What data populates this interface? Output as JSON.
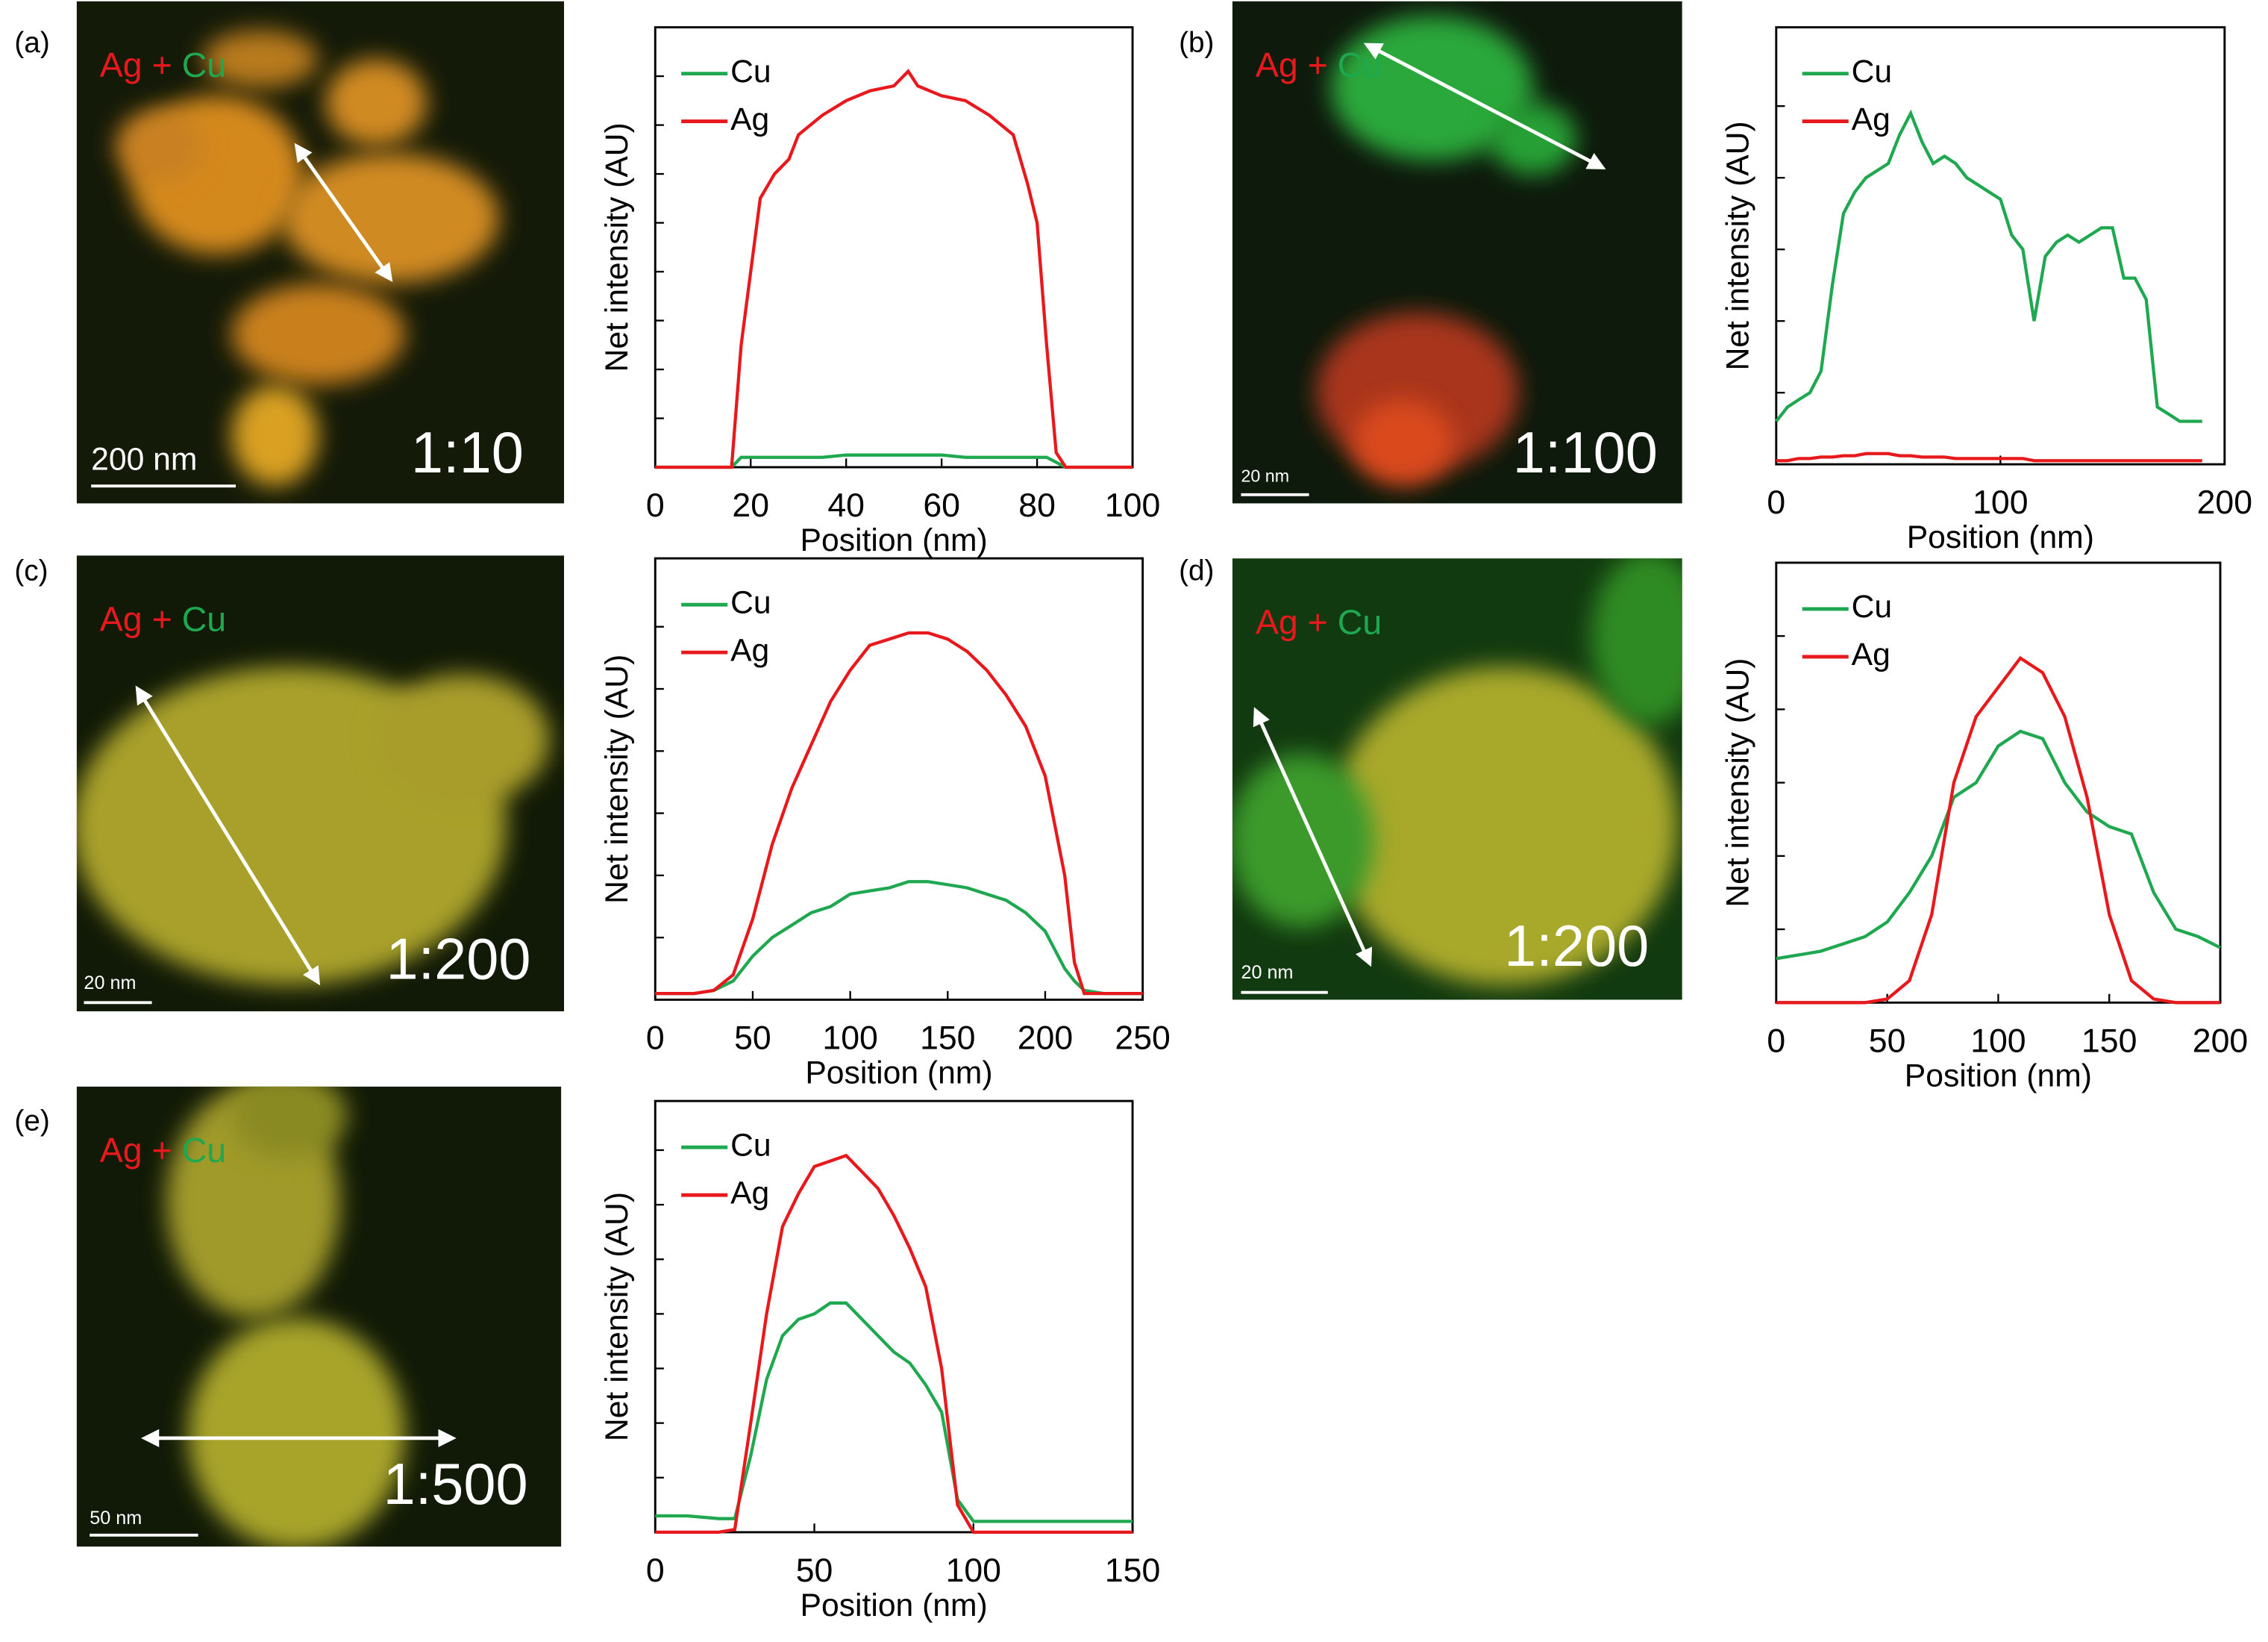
{
  "chart_data": [
    {
      "type": "line",
      "panel_label": "(a)",
      "map_labels": [
        {
          "text": "Ag",
          "color": "#e8191c"
        },
        {
          "text": "+",
          "color": "#e8191c"
        },
        {
          "text": "Cu",
          "color": "#1fa84f"
        }
      ],
      "scale_bar": "200 nm",
      "ratio": "1:10",
      "ylabel": "Net intensity (AU)",
      "xlabel": "Position (nm)",
      "legend": "upper left",
      "x": [
        0,
        10,
        16,
        18,
        20,
        22,
        25,
        28,
        30,
        35,
        40,
        45,
        50,
        53,
        55,
        60,
        65,
        70,
        75,
        78,
        80,
        82,
        84,
        86,
        90,
        100
      ],
      "series": [
        {
          "name": "Cu",
          "color": "#1fa84f",
          "values": [
            0,
            0,
            0,
            0.2,
            0.2,
            0.2,
            0.2,
            0.2,
            0.2,
            0.2,
            0.25,
            0.25,
            0.25,
            0.25,
            0.25,
            0.25,
            0.2,
            0.2,
            0.2,
            0.2,
            0.2,
            0.2,
            0.1,
            0,
            0,
            0
          ]
        },
        {
          "name": "Ag",
          "color": "#e8191c",
          "values": [
            0,
            0,
            0,
            2.5,
            4.0,
            5.5,
            6.0,
            6.3,
            6.8,
            7.2,
            7.5,
            7.7,
            7.8,
            8.1,
            7.8,
            7.6,
            7.5,
            7.2,
            6.8,
            5.8,
            5.0,
            2.5,
            0.3,
            0,
            0,
            0
          ]
        }
      ],
      "xlim": [
        0,
        100
      ],
      "xticks": [
        0,
        20,
        40,
        60,
        80,
        100
      ],
      "ylim": [
        0,
        9
      ],
      "yticks": [
        1,
        2,
        3,
        4,
        5,
        6,
        7,
        8
      ]
    },
    {
      "type": "line",
      "panel_label": "(b)",
      "map_labels": [
        {
          "text": "Ag",
          "color": "#e8191c"
        },
        {
          "text": "+",
          "color": "#e8191c"
        },
        {
          "text": "Cu",
          "color": "#1fa84f"
        }
      ],
      "scale_bar": "20 nm",
      "ratio": "1:100",
      "ylabel": "Net intensity (AU)",
      "xlabel": "Position (nm)",
      "legend": "upper left",
      "x": [
        0,
        5,
        10,
        15,
        20,
        25,
        30,
        35,
        40,
        45,
        50,
        55,
        60,
        65,
        70,
        75,
        80,
        85,
        90,
        95,
        100,
        105,
        110,
        115,
        120,
        125,
        130,
        135,
        140,
        145,
        150,
        155,
        160,
        165,
        170,
        175,
        180,
        185,
        190
      ],
      "series": [
        {
          "name": "Cu",
          "color": "#1fa84f",
          "values": [
            0.6,
            0.8,
            0.9,
            1.0,
            1.3,
            2.5,
            3.5,
            3.8,
            4.0,
            4.1,
            4.2,
            4.6,
            4.9,
            4.5,
            4.2,
            4.3,
            4.2,
            4.0,
            3.9,
            3.8,
            3.7,
            3.2,
            3.0,
            2.0,
            2.9,
            3.1,
            3.2,
            3.1,
            3.2,
            3.3,
            3.3,
            2.6,
            2.6,
            2.3,
            0.8,
            0.7,
            0.6,
            0.6,
            0.6
          ]
        },
        {
          "name": "Ag",
          "color": "#e8191c",
          "values": [
            0.05,
            0.05,
            0.08,
            0.08,
            0.1,
            0.1,
            0.12,
            0.12,
            0.15,
            0.15,
            0.15,
            0.12,
            0.12,
            0.1,
            0.1,
            0.1,
            0.08,
            0.08,
            0.08,
            0.08,
            0.08,
            0.08,
            0.08,
            0.05,
            0.05,
            0.05,
            0.05,
            0.05,
            0.05,
            0.05,
            0.05,
            0.05,
            0.05,
            0.05,
            0.05,
            0.05,
            0.05,
            0.05,
            0.05
          ]
        }
      ],
      "xlim": [
        0,
        200
      ],
      "xticks": [
        0,
        100,
        200
      ],
      "ylim": [
        0,
        6.1
      ],
      "yticks": [
        1,
        2,
        3,
        4,
        5
      ]
    },
    {
      "type": "line",
      "panel_label": "(c)",
      "map_labels": [
        {
          "text": "Ag",
          "color": "#e8191c"
        },
        {
          "text": "+",
          "color": "#e8191c"
        },
        {
          "text": "Cu",
          "color": "#1fa84f"
        }
      ],
      "scale_bar": "20 nm",
      "ratio": "1:200",
      "ylabel": "Net intensity (AU)",
      "xlabel": "Position (nm)",
      "legend": "upper left",
      "x": [
        0,
        10,
        20,
        30,
        40,
        50,
        60,
        70,
        80,
        90,
        100,
        110,
        120,
        130,
        140,
        150,
        160,
        170,
        180,
        190,
        200,
        210,
        215,
        220,
        230,
        240,
        250
      ],
      "series": [
        {
          "name": "Cu",
          "color": "#1fa84f",
          "values": [
            0.1,
            0.1,
            0.1,
            0.15,
            0.3,
            0.7,
            1.0,
            1.2,
            1.4,
            1.5,
            1.7,
            1.75,
            1.8,
            1.9,
            1.9,
            1.85,
            1.8,
            1.7,
            1.6,
            1.4,
            1.1,
            0.5,
            0.3,
            0.15,
            0.1,
            0.1,
            0.1
          ]
        },
        {
          "name": "Ag",
          "color": "#e8191c",
          "values": [
            0.1,
            0.1,
            0.1,
            0.15,
            0.4,
            1.3,
            2.5,
            3.4,
            4.1,
            4.8,
            5.3,
            5.7,
            5.8,
            5.9,
            5.9,
            5.8,
            5.6,
            5.3,
            4.9,
            4.4,
            3.6,
            2.0,
            0.6,
            0.1,
            0.1,
            0.1,
            0.1
          ]
        }
      ],
      "xlim": [
        0,
        250
      ],
      "xticks": [
        0,
        50,
        100,
        150,
        200,
        250
      ],
      "ylim": [
        0,
        7.1
      ],
      "yticks": [
        1,
        2,
        3,
        4,
        5,
        6
      ]
    },
    {
      "type": "line",
      "panel_label": "(d)",
      "map_labels": [
        {
          "text": "Ag",
          "color": "#e8191c"
        },
        {
          "text": "+",
          "color": "#e8191c"
        },
        {
          "text": "Cu",
          "color": "#1fa84f"
        }
      ],
      "scale_bar": "20 nm",
      "ratio": "1:200",
      "ylabel": "Net intensity (AU)",
      "xlabel": "Position (nm)",
      "legend": "upper left",
      "x": [
        0,
        10,
        20,
        30,
        40,
        50,
        60,
        70,
        80,
        90,
        100,
        110,
        120,
        130,
        140,
        150,
        160,
        170,
        180,
        190,
        200
      ],
      "series": [
        {
          "name": "Cu",
          "color": "#1fa84f",
          "values": [
            0.6,
            0.65,
            0.7,
            0.8,
            0.9,
            1.1,
            1.5,
            2.0,
            2.8,
            3.0,
            3.5,
            3.7,
            3.6,
            3.0,
            2.6,
            2.4,
            2.3,
            1.5,
            1.0,
            0.9,
            0.75
          ]
        },
        {
          "name": "Ag",
          "color": "#e8191c",
          "values": [
            0,
            0,
            0,
            0,
            0,
            0.05,
            0.3,
            1.2,
            3.0,
            3.9,
            4.3,
            4.7,
            4.5,
            3.9,
            2.8,
            1.2,
            0.3,
            0.05,
            0,
            0,
            0
          ]
        }
      ],
      "xlim": [
        0,
        200
      ],
      "xticks": [
        0,
        50,
        100,
        150,
        200
      ],
      "ylim": [
        0,
        6
      ],
      "yticks": [
        1,
        2,
        3,
        4,
        5
      ]
    },
    {
      "type": "line",
      "panel_label": "(e)",
      "map_labels": [
        {
          "text": "Ag",
          "color": "#e8191c"
        },
        {
          "text": "+",
          "color": "#e8191c"
        },
        {
          "text": "Cu",
          "color": "#1fa84f"
        }
      ],
      "scale_bar": "50 nm",
      "ratio": "1:500",
      "ylabel": "Net intensity (AU)",
      "xlabel": "Position (nm)",
      "legend": "upper left",
      "x": [
        0,
        10,
        20,
        25,
        30,
        35,
        40,
        45,
        50,
        55,
        60,
        65,
        70,
        75,
        80,
        85,
        90,
        95,
        100,
        110,
        120,
        130,
        140,
        150
      ],
      "series": [
        {
          "name": "Cu",
          "color": "#1fa84f",
          "values": [
            0.3,
            0.3,
            0.25,
            0.25,
            1.4,
            2.8,
            3.6,
            3.9,
            4.0,
            4.2,
            4.2,
            3.9,
            3.6,
            3.3,
            3.1,
            2.7,
            2.2,
            0.6,
            0.2,
            0.2,
            0.2,
            0.2,
            0.2,
            0.2
          ]
        },
        {
          "name": "Ag",
          "color": "#e8191c",
          "values": [
            0,
            0,
            0,
            0.05,
            2.0,
            4.0,
            5.6,
            6.2,
            6.7,
            6.8,
            6.9,
            6.6,
            6.3,
            5.8,
            5.2,
            4.5,
            3.0,
            0.5,
            0,
            0,
            0,
            0,
            0,
            0
          ]
        }
      ],
      "xlim": [
        0,
        150
      ],
      "xticks": [
        0,
        50,
        100,
        150
      ],
      "ylim": [
        0,
        7.9
      ],
      "yticks": [
        1,
        2,
        3,
        4,
        5,
        6,
        7
      ]
    }
  ]
}
